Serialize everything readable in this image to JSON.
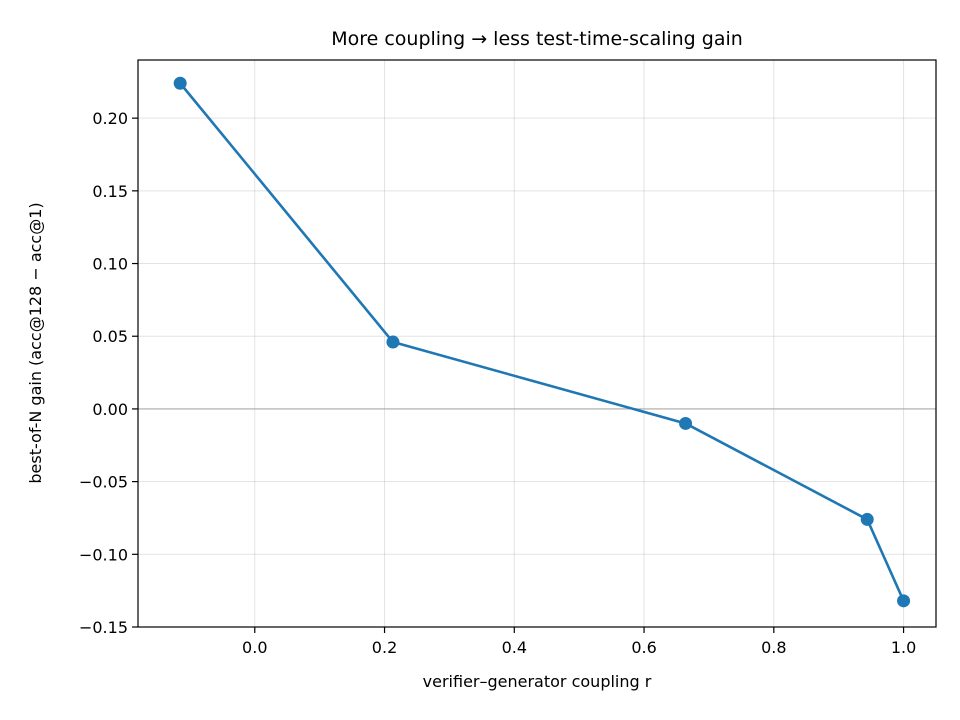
{
  "chart_data": {
    "type": "line",
    "title": "More coupling → less test-time-scaling gain",
    "xlabel": "verifier–generator coupling  r",
    "ylabel": "best-of-N gain (acc@128 − acc@1)",
    "xlim": [
      -0.18,
      1.05
    ],
    "ylim": [
      -0.15,
      0.24
    ],
    "xticks": [
      0.0,
      0.2,
      0.4,
      0.6,
      0.8,
      1.0
    ],
    "xtick_labels": [
      "0.0",
      "0.2",
      "0.4",
      "0.6",
      "0.8",
      "1.0"
    ],
    "yticks": [
      -0.15,
      -0.1,
      -0.05,
      0.0,
      0.05,
      0.1,
      0.15,
      0.2
    ],
    "ytick_labels": [
      "−0.15",
      "−0.10",
      "−0.05",
      "0.00",
      "0.05",
      "0.10",
      "0.15",
      "0.20"
    ],
    "grid": true,
    "reference_line_y": 0,
    "color": "#1f77b4",
    "reference_color": "#9e9e9e",
    "series": [
      {
        "x": [
          -0.115,
          0.213,
          0.664,
          0.944,
          1.0
        ],
        "y": [
          0.224,
          0.046,
          -0.01,
          -0.076,
          -0.132
        ]
      }
    ]
  }
}
